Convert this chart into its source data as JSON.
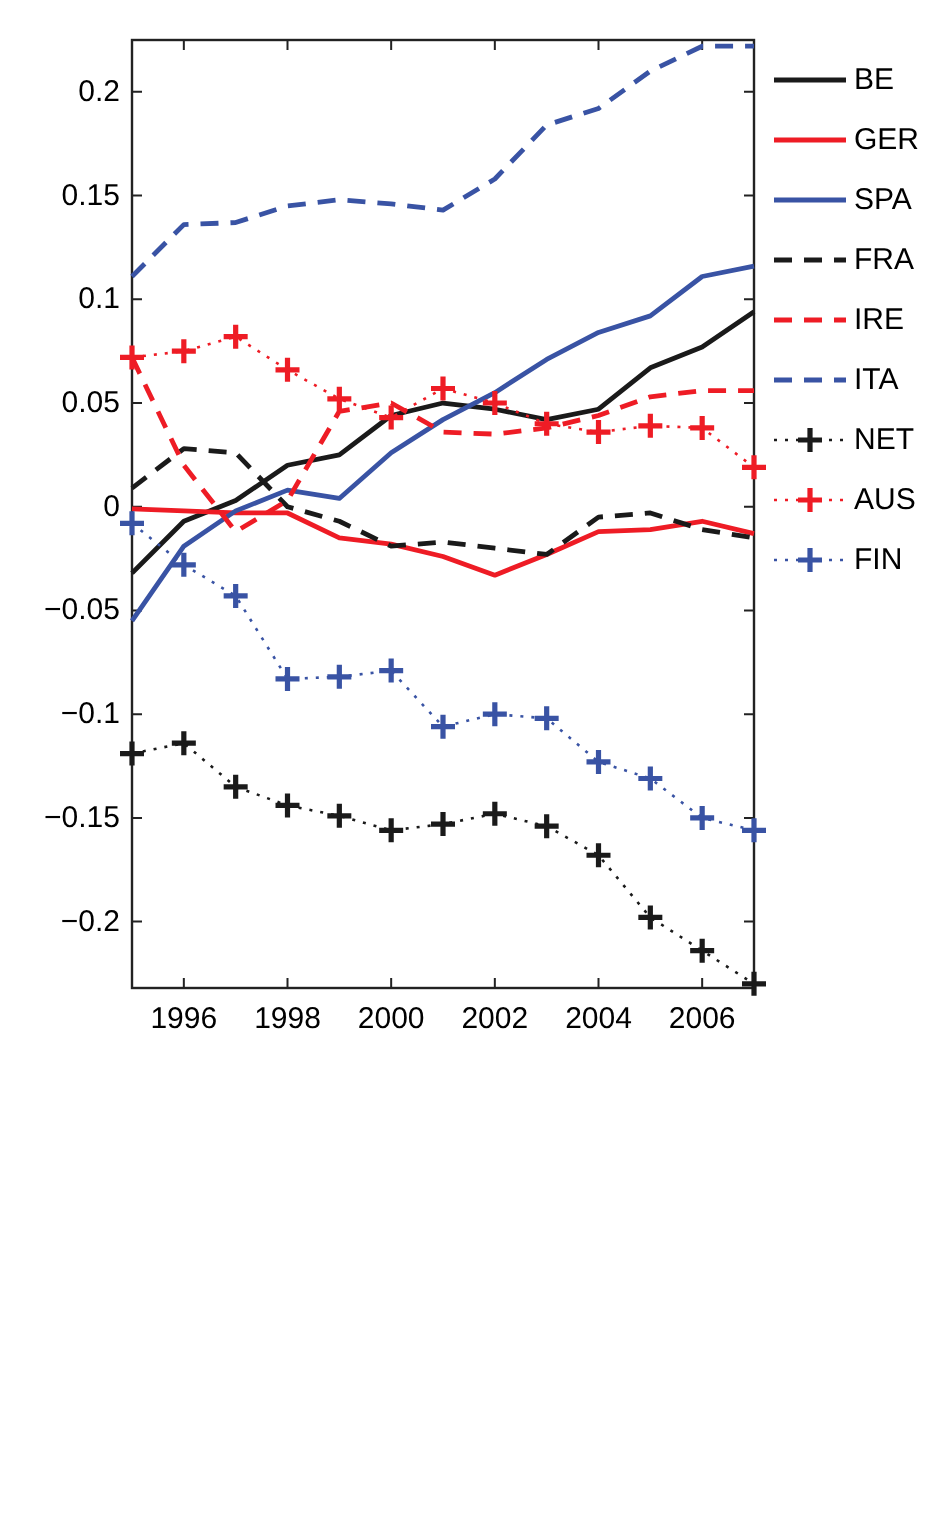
{
  "chart_data": {
    "type": "line",
    "x": [
      1995,
      1996,
      1997,
      1998,
      1999,
      2000,
      2001,
      2002,
      2003,
      2004,
      2005,
      2006,
      2007
    ],
    "xlim": [
      1995,
      2007
    ],
    "xticks": [
      1996,
      1998,
      2000,
      2002,
      2004,
      2006
    ],
    "ylim": [
      -0.232,
      0.225
    ],
    "yticks": [
      {
        "value": -0.2,
        "label": "−0.2"
      },
      {
        "value": -0.15,
        "label": "−0.15"
      },
      {
        "value": -0.1,
        "label": "−0.1"
      },
      {
        "value": -0.05,
        "label": "−0.05"
      },
      0,
      0.05,
      0.1,
      0.15,
      0.2
    ],
    "grid": false,
    "legend": "right",
    "series": [
      {
        "name": "BE",
        "color": "#1a1a1a",
        "line_style": "solid",
        "marker": "none",
        "values": [
          -0.032,
          -0.007,
          0.003,
          0.02,
          0.025,
          0.044,
          0.05,
          0.047,
          0.042,
          0.047,
          0.067,
          0.077,
          0.094
        ]
      },
      {
        "name": "GER",
        "color": "#ee1c25",
        "line_style": "solid",
        "marker": "none",
        "values": [
          -0.001,
          -0.002,
          -0.003,
          -0.003,
          -0.015,
          -0.018,
          -0.024,
          -0.033,
          -0.023,
          -0.012,
          -0.011,
          -0.007,
          -0.013
        ]
      },
      {
        "name": "SPA",
        "color": "#3953a4",
        "line_style": "solid",
        "marker": "none",
        "values": [
          -0.055,
          -0.019,
          -0.002,
          0.008,
          0.004,
          0.026,
          0.042,
          0.055,
          0.071,
          0.084,
          0.092,
          0.111,
          0.116
        ]
      },
      {
        "name": "FRA",
        "color": "#1a1a1a",
        "line_style": "dashed",
        "marker": "none",
        "values": [
          0.009,
          0.028,
          0.026,
          0.0,
          -0.007,
          -0.019,
          -0.017,
          -0.02,
          -0.023,
          -0.005,
          -0.003,
          -0.011,
          -0.015
        ]
      },
      {
        "name": "IRE",
        "color": "#ee1c25",
        "line_style": "dashed",
        "marker": "none",
        "values": [
          0.072,
          0.02,
          -0.012,
          0.003,
          0.046,
          0.05,
          0.036,
          0.035,
          0.038,
          0.044,
          0.053,
          0.056,
          0.056
        ]
      },
      {
        "name": "ITA",
        "color": "#3953a4",
        "line_style": "dashed",
        "marker": "none",
        "values": [
          0.111,
          0.136,
          0.137,
          0.145,
          0.148,
          0.146,
          0.143,
          0.158,
          0.184,
          0.192,
          0.21,
          0.222,
          0.222
        ]
      },
      {
        "name": "NET",
        "color": "#1a1a1a",
        "line_style": "dotted",
        "marker": "cross",
        "values": [
          -0.119,
          -0.114,
          -0.135,
          -0.144,
          -0.149,
          -0.156,
          -0.153,
          -0.148,
          -0.154,
          -0.168,
          -0.198,
          -0.214,
          -0.23
        ]
      },
      {
        "name": "AUS",
        "color": "#ee1c25",
        "line_style": "dotted",
        "marker": "cross",
        "values": [
          0.072,
          0.075,
          0.082,
          0.066,
          0.052,
          0.043,
          0.057,
          0.05,
          0.04,
          0.036,
          0.039,
          0.038,
          0.019
        ]
      },
      {
        "name": "FIN",
        "color": "#3953a4",
        "line_style": "dotted",
        "marker": "cross",
        "values": [
          -0.008,
          -0.028,
          -0.043,
          -0.083,
          -0.082,
          -0.079,
          -0.106,
          -0.1,
          -0.102,
          -0.123,
          -0.131,
          -0.15,
          -0.156
        ]
      }
    ]
  }
}
